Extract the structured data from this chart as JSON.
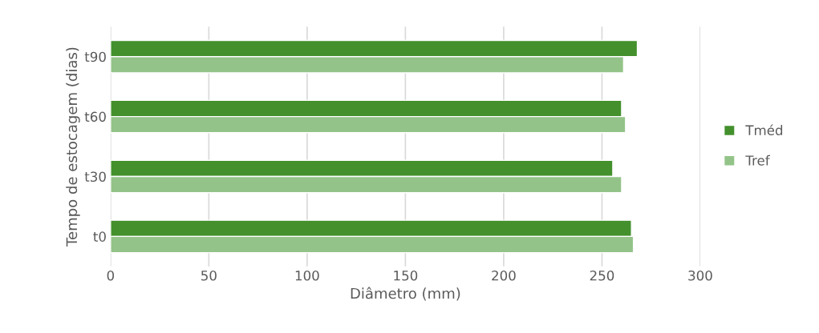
{
  "chart_data": {
    "type": "bar",
    "orientation": "horizontal",
    "xlabel": "Diâmetro (mm)",
    "ylabel": "Tempo de estocagem (dias)",
    "categories": [
      "t90",
      "t60",
      "t30",
      "t0"
    ],
    "series": [
      {
        "name": "Tméd",
        "color": "#43902c",
        "values": [
          268,
          260,
          255.5,
          265
        ]
      },
      {
        "name": "Tref",
        "color": "#93c388",
        "values": [
          261,
          262,
          260,
          266
        ]
      }
    ],
    "xlim": [
      0,
      300
    ],
    "xticks": [
      0,
      50,
      100,
      150,
      200,
      250,
      300
    ],
    "grid": "x",
    "legend": "right"
  }
}
